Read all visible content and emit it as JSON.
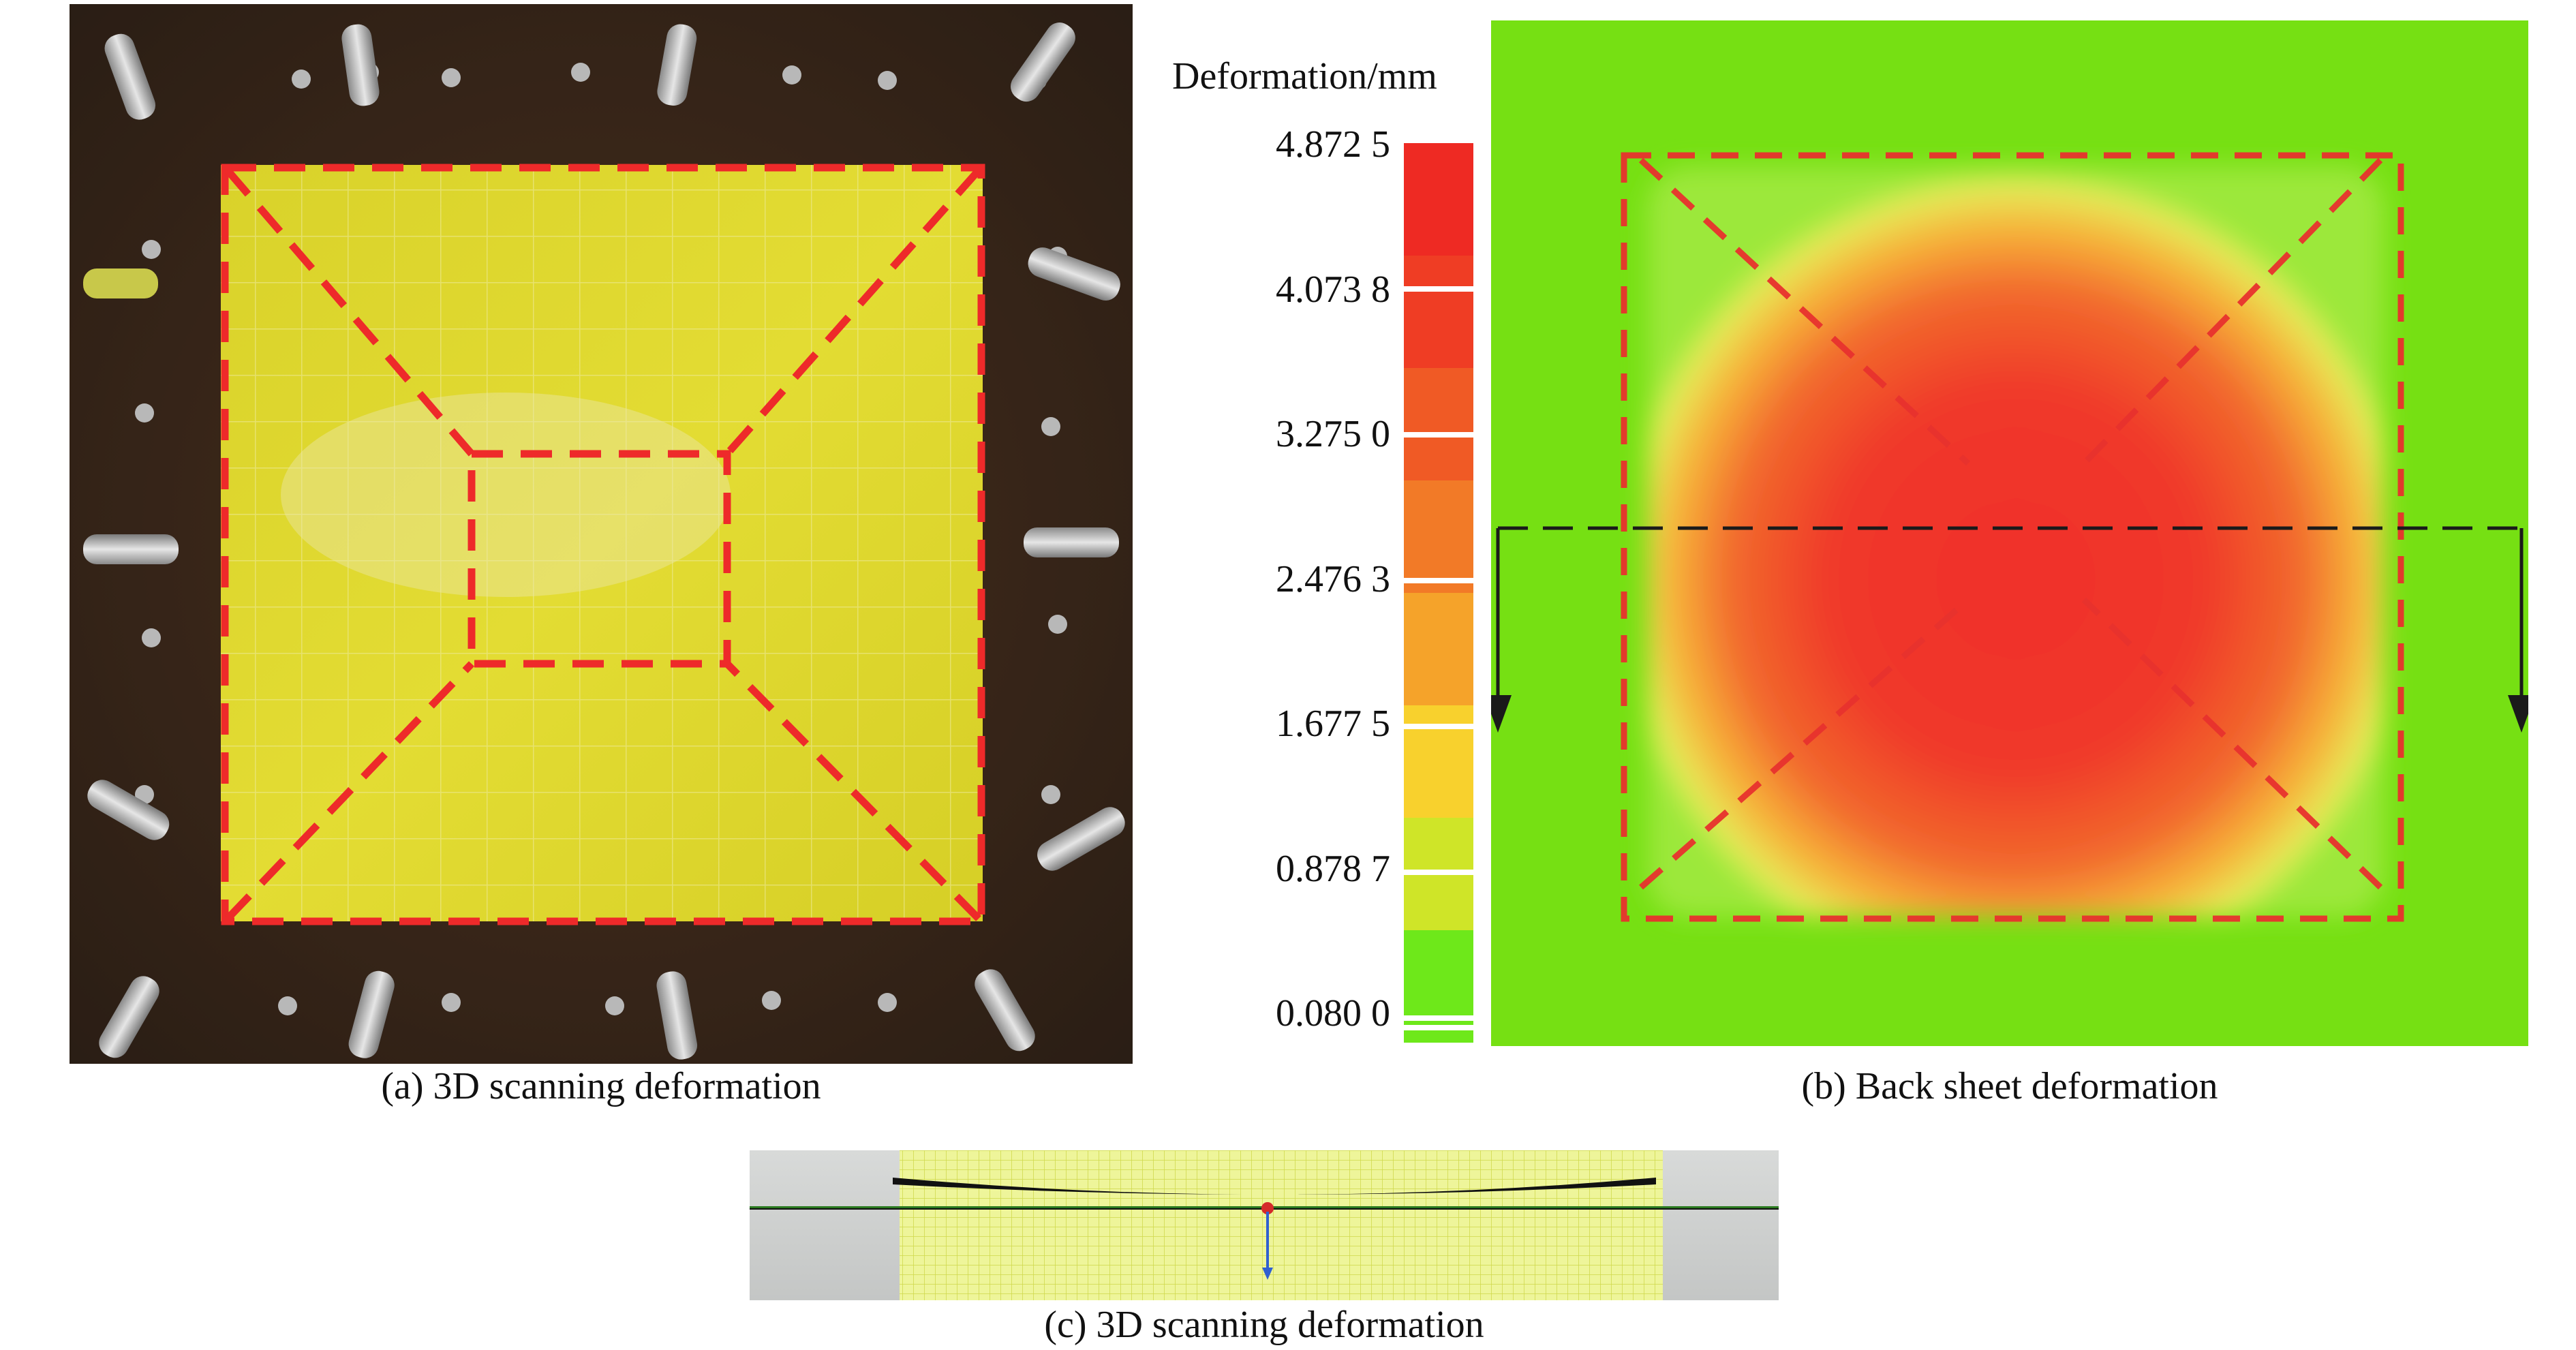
{
  "panels": {
    "a": {
      "caption": "(a) 3D scanning deformation"
    },
    "b": {
      "caption": "(b) Back sheet deformation",
      "colorbar": {
        "title": "Deformation/mm",
        "ticks": [
          "4.872 5",
          "4.073 8",
          "3.275 0",
          "2.476 3",
          "1.677 5",
          "0.878 7",
          "0.080 0"
        ],
        "colors": [
          "#ee2a23",
          "#ef3d24",
          "#f05a25",
          "#f27a27",
          "#f5a32a",
          "#f8d12d",
          "#cfe528",
          "#6ee81a"
        ],
        "max": 4.8725,
        "min": 0.08
      },
      "colors": {
        "background": "#76e013",
        "peak": "#f0302a",
        "dashed_outline": "#e8322e"
      }
    },
    "c": {
      "caption": "(c) 3D scanning deformation"
    }
  }
}
